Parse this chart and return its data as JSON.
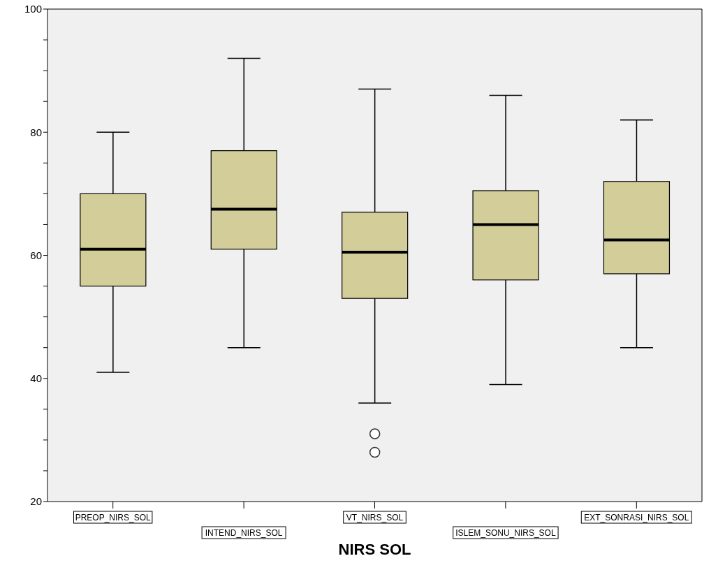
{
  "chart_data": {
    "type": "box",
    "xlabel": "NIRS SOL",
    "categories": [
      "PREOP_NIRS_SOL",
      "INTEND_NIRS_SOL",
      "VT_NIRS_SOL",
      "ISLEM_SONU_NIRS_SOL",
      "EXT_SONRASI_NIRS_SOL"
    ],
    "series": [
      {
        "color": "#d3ce99",
        "boxes": [
          {
            "low": 41,
            "q1": 55,
            "median": 61,
            "q3": 70,
            "high": 80
          },
          {
            "low": 45,
            "q1": 61,
            "median": 67.5,
            "q3": 77,
            "high": 92
          },
          {
            "low": 36,
            "q1": 53,
            "median": 60.5,
            "q3": 67,
            "high": 87,
            "outliers": [
              31,
              28
            ]
          },
          {
            "low": 39,
            "q1": 56,
            "median": 65,
            "q3": 70.5,
            "high": 86
          },
          {
            "low": 45,
            "q1": 57,
            "median": 62.5,
            "q3": 72,
            "high": 82
          }
        ]
      }
    ],
    "ylim": [
      20,
      100
    ],
    "yticks": [
      20,
      {
        "value": 25,
        "label": null
      },
      {
        "value": 30,
        "label": null
      },
      {
        "value": 35,
        "label": null
      },
      40,
      {
        "value": 45,
        "label": null
      },
      {
        "value": 50,
        "label": null
      },
      {
        "value": 55,
        "label": null
      },
      60,
      {
        "value": 65,
        "label": null
      },
      {
        "value": 70,
        "label": null
      },
      {
        "value": 75,
        "label": null
      },
      80,
      {
        "value": 85,
        "label": null
      },
      {
        "value": 90,
        "label": null
      },
      {
        "value": 95,
        "label": null
      },
      100
    ]
  }
}
